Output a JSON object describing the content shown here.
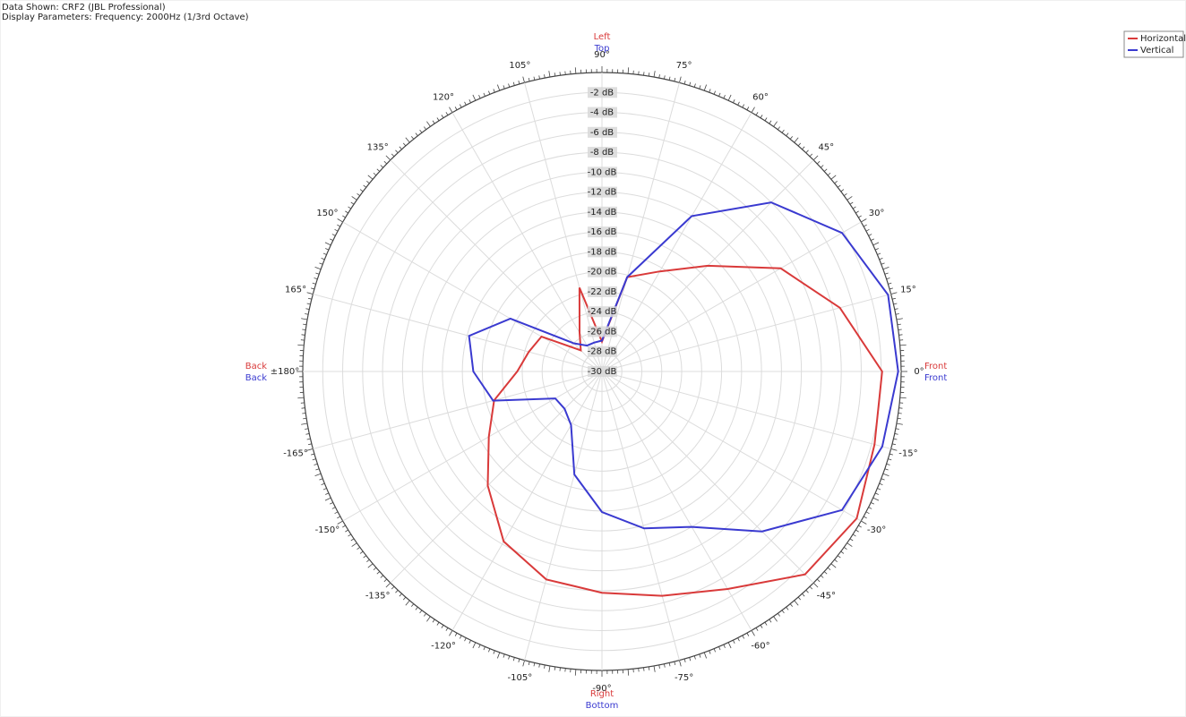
{
  "chart_data": {
    "type": "polar",
    "header": [
      "Data Shown:    CRF2 (JBL Professional)",
      "Display Parameters:    Frequency: 2000Hz (1/3rd Octave)"
    ],
    "theta": [
      -180,
      -165,
      -150,
      -135,
      -120,
      -105,
      -90,
      -75,
      -60,
      -45,
      -30,
      -15,
      0,
      15,
      30,
      45,
      60,
      75,
      90,
      105,
      120,
      135,
      150,
      165
    ],
    "series": [
      {
        "name": "Horizontal",
        "color": "#d93a3a",
        "direction_labels": [
          "Front",
          "Left",
          "Back",
          "Right"
        ],
        "values": [
          -21.5,
          -18.8,
          -16.9,
          -13.8,
          -10.3,
          -8.4,
          -7.8,
          -6.7,
          -4.8,
          -1.2,
          -0.5,
          -1.7,
          -1.9,
          -5.3,
          -9.3,
          -15,
          -18.4,
          -20.2,
          -27,
          -21.3,
          -25.5,
          -27,
          -23,
          -22.4
        ]
      },
      {
        "name": "Vertical",
        "color": "#3a3ad0",
        "direction_labels": [
          "Front",
          "Top",
          "Back",
          "Bottom"
        ],
        "values": [
          -17.1,
          -18.7,
          -24.6,
          -24.7,
          -23.8,
          -19.3,
          -15.9,
          -13.7,
          -12,
          -7.3,
          -2.2,
          -0.9,
          -0.3,
          -0.3,
          -2.2,
          -6,
          -12,
          -20.2,
          -26.9,
          -27,
          -27,
          -26,
          -19.4,
          -16.2
        ]
      }
    ],
    "rlim": [
      -30,
      0
    ],
    "rticks": [
      {
        "value": -2,
        "label": "-2 dB"
      },
      {
        "value": -4,
        "label": "-4 dB"
      },
      {
        "value": -6,
        "label": "-6 dB"
      },
      {
        "value": -8,
        "label": "-8 dB"
      },
      {
        "value": -10,
        "label": "-10 dB"
      },
      {
        "value": -12,
        "label": "-12 dB"
      },
      {
        "value": -14,
        "label": "-14 dB"
      },
      {
        "value": -16,
        "label": "-16 dB"
      },
      {
        "value": -18,
        "label": "-18 dB"
      },
      {
        "value": -20,
        "label": "-20 dB"
      },
      {
        "value": -22,
        "label": "-22 dB"
      },
      {
        "value": -24,
        "label": "-24 dB"
      },
      {
        "value": -26,
        "label": "-26 dB"
      },
      {
        "value": -28,
        "label": "-28 dB"
      },
      {
        "value": -30,
        "label": "-30 dB"
      }
    ],
    "thetaticks": [
      {
        "value": 0,
        "label": "0°"
      },
      {
        "value": 15,
        "label": "15°"
      },
      {
        "value": 30,
        "label": "30°"
      },
      {
        "value": 45,
        "label": "45°"
      },
      {
        "value": 60,
        "label": "60°"
      },
      {
        "value": 75,
        "label": "75°"
      },
      {
        "value": 90,
        "label": "90°"
      },
      {
        "value": 105,
        "label": "105°"
      },
      {
        "value": 120,
        "label": "120°"
      },
      {
        "value": 135,
        "label": "135°"
      },
      {
        "value": 150,
        "label": "150°"
      },
      {
        "value": 165,
        "label": "165°"
      },
      {
        "value": 180,
        "label": "±180°"
      },
      {
        "value": -165,
        "label": "-165°"
      },
      {
        "value": -150,
        "label": "-150°"
      },
      {
        "value": -135,
        "label": "-135°"
      },
      {
        "value": -120,
        "label": "-120°"
      },
      {
        "value": -105,
        "label": "-105°"
      },
      {
        "value": -90,
        "label": "-90°"
      },
      {
        "value": -75,
        "label": "-75°"
      },
      {
        "value": -60,
        "label": "-60°"
      },
      {
        "value": -45,
        "label": "-45°"
      },
      {
        "value": -30,
        "label": "-30°"
      },
      {
        "value": -15,
        "label": "-15°"
      }
    ],
    "grid": true,
    "legend": "upper right"
  }
}
